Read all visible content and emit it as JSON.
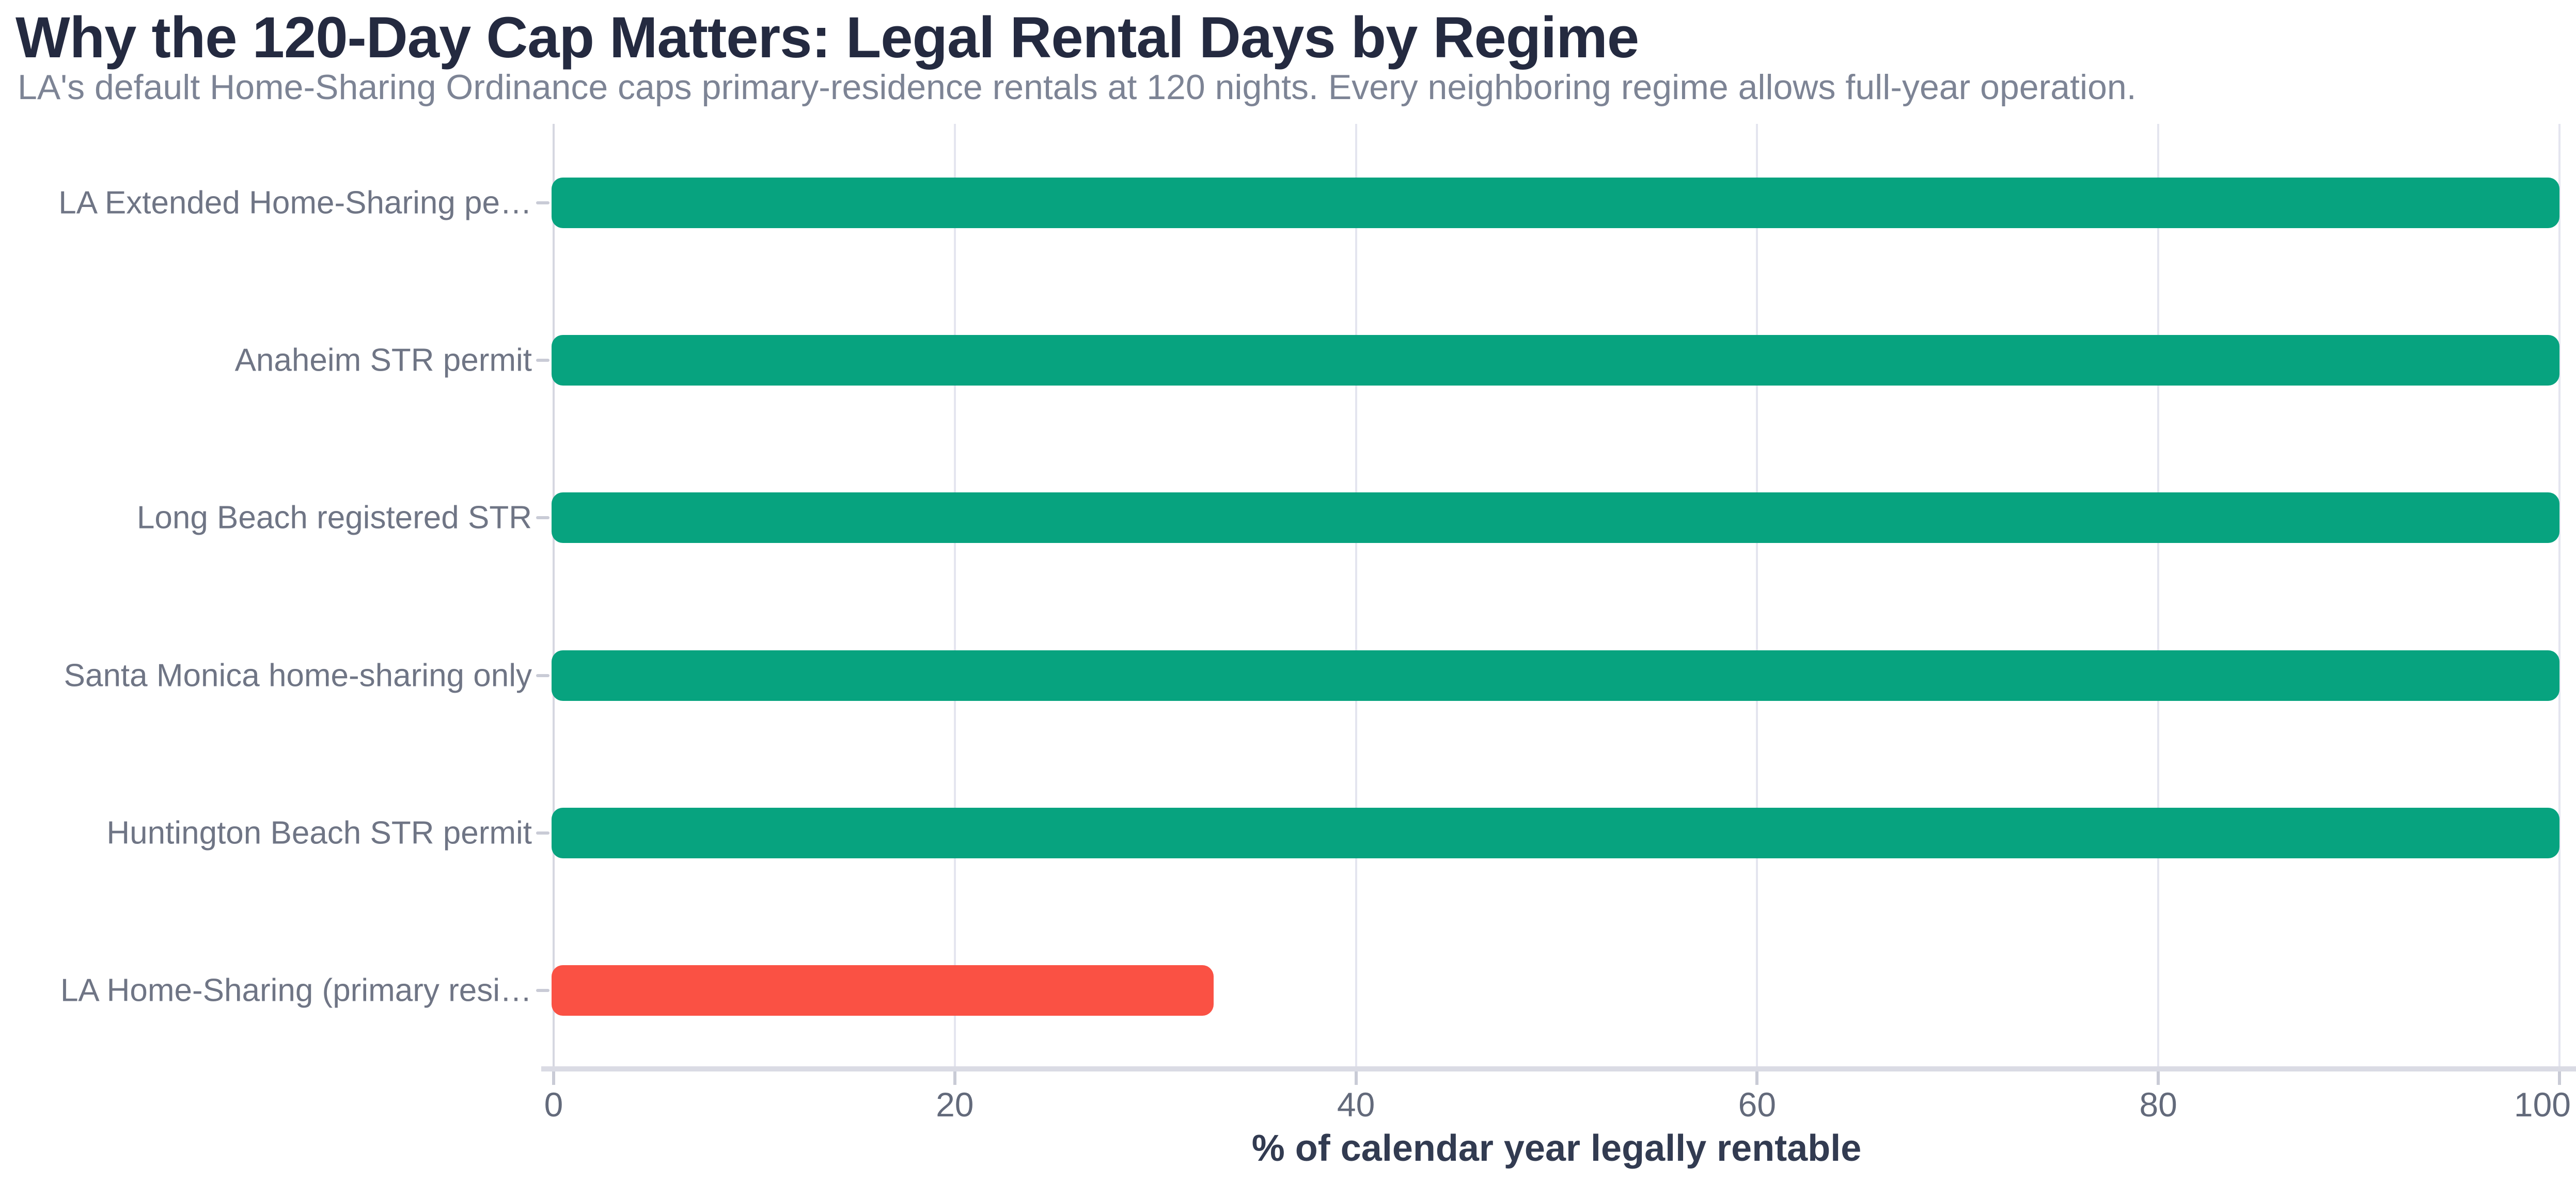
{
  "chart_data": {
    "type": "bar",
    "orientation": "horizontal",
    "title": "Why the 120-Day Cap Matters: Legal Rental Days by Regime",
    "subtitle": "LA's default Home-Sharing Ordinance caps primary-residence rentals at 120 nights. Every neighboring regime allows full-year operation.",
    "xlabel": "% of calendar year legally rentable",
    "categories": [
      "LA Extended Home-Sharing pe…",
      "Anaheim STR permit",
      "Long Beach registered STR",
      "Santa Monica home-sharing only",
      "Huntington Beach STR permit",
      "LA Home-Sharing (primary resi…"
    ],
    "values": [
      100,
      100,
      100,
      100,
      100,
      32.9
    ],
    "bar_colors": [
      "#07a37f",
      "#07a37f",
      "#07a37f",
      "#07a37f",
      "#07a37f",
      "#fa5144"
    ],
    "xlim": [
      0,
      100
    ],
    "xticks": [
      0,
      20,
      40,
      60,
      80,
      100
    ],
    "grid": "vertical",
    "legend": "none",
    "colors": {
      "green": "#07a37f",
      "red": "#fa5144",
      "background": "#ffffff",
      "title_text": "#242a40",
      "subtitle_text": "#7d8495",
      "axis_label_text": "#6f7585",
      "tick_text": "#636a7b",
      "axis_title_text": "#323b51",
      "gridline": "#e4e5ef",
      "zero_gridline": "#d6d7e1",
      "axis_line": "#dadbe4",
      "tick_mark": "#c9cbd6"
    }
  }
}
